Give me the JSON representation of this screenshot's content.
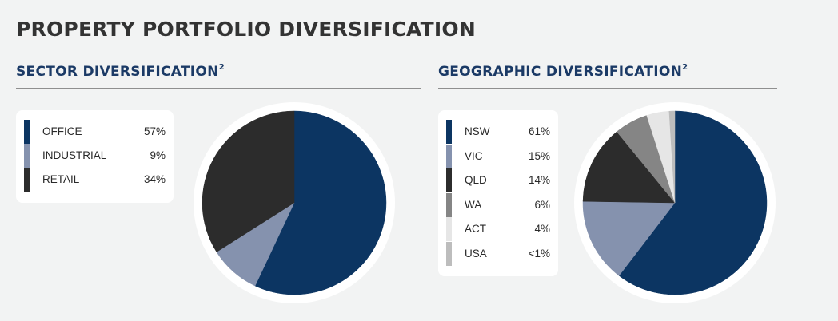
{
  "page_title": "PROPERTY PORTFOLIO DIVERSIFICATION",
  "chart_data": [
    {
      "type": "pie",
      "title": "SECTOR DIVERSIFICATION",
      "title_superscript": "2",
      "slices": [
        {
          "label": "OFFICE",
          "value": 57,
          "display": "57%",
          "color": "#0c3562"
        },
        {
          "label": "INDUSTRIAL",
          "value": 9,
          "display": "9%",
          "color": "#8592ae"
        },
        {
          "label": "RETAIL",
          "value": 34,
          "display": "34%",
          "color": "#2c2c2c"
        }
      ],
      "legend_placement": "left"
    },
    {
      "type": "pie",
      "title": "GEOGRAPHIC DIVERSIFICATION",
      "title_superscript": "2",
      "slices": [
        {
          "label": "NSW",
          "value": 61,
          "display": "61%",
          "color": "#0c3562"
        },
        {
          "label": "VIC",
          "value": 15,
          "display": "15%",
          "color": "#8592ae"
        },
        {
          "label": "QLD",
          "value": 14,
          "display": "14%",
          "color": "#2c2c2c"
        },
        {
          "label": "WA",
          "value": 6,
          "display": "6%",
          "color": "#858585"
        },
        {
          "label": "ACT",
          "value": 4,
          "display": "4%",
          "color": "#e6e6e6"
        },
        {
          "label": "USA",
          "value": 1,
          "display": "<1%",
          "color": "#bdbdbd"
        }
      ],
      "legend_placement": "left"
    }
  ]
}
